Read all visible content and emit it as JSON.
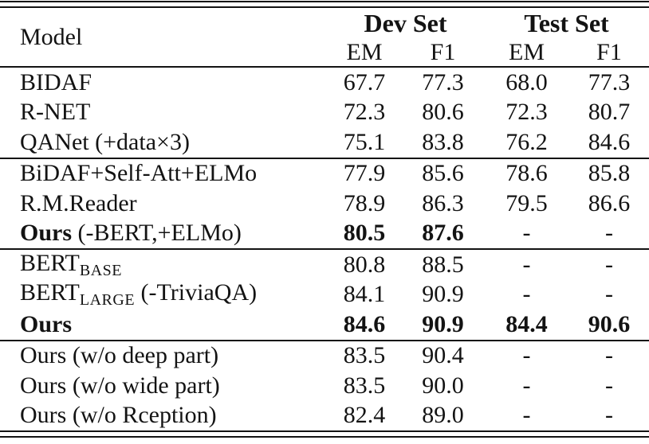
{
  "table": {
    "header": {
      "model": "Model",
      "dev_set": "Dev Set",
      "test_set": "Test Set",
      "em": "EM",
      "f1": "F1"
    },
    "rows": [
      {
        "head": "BIDAF",
        "dev_em": "67.7",
        "dev_f1": "77.3",
        "test_em": "68.0",
        "test_f1": "77.3"
      },
      {
        "head": "R-NET",
        "dev_em": "72.3",
        "dev_f1": "80.6",
        "test_em": "72.3",
        "test_f1": "80.7"
      },
      {
        "head": "QANet (+data×3)",
        "dev_em": "75.1",
        "dev_f1": "83.8",
        "test_em": "76.2",
        "test_f1": "84.6"
      },
      {
        "head": "BiDAF+Self-Att+ELMo",
        "dev_em": "77.9",
        "dev_f1": "85.6",
        "test_em": "78.6",
        "test_f1": "85.8"
      },
      {
        "head": "R.M.Reader",
        "dev_em": "78.9",
        "dev_f1": "86.3",
        "test_em": "79.5",
        "test_f1": "86.6"
      },
      {
        "head": "Ours",
        "rest": " (-BERT,+ELMo)",
        "dev_em": "80.5",
        "dev_f1": "87.6",
        "test_em": "-",
        "test_f1": "-"
      },
      {
        "head": "BERT",
        "sub": "BASE",
        "dev_em": "80.8",
        "dev_f1": "88.5",
        "test_em": "-",
        "test_f1": "-"
      },
      {
        "head": "BERT",
        "sub": "LARGE",
        "rest": " (-TriviaQA)",
        "dev_em": "84.1",
        "dev_f1": "90.9",
        "test_em": "-",
        "test_f1": "-"
      },
      {
        "head": "Ours",
        "dev_em": "84.6",
        "dev_f1": "90.9",
        "test_em": "84.4",
        "test_f1": "90.6"
      },
      {
        "head": "Ours (w/o deep part)",
        "dev_em": "83.5",
        "dev_f1": "90.4",
        "test_em": "-",
        "test_f1": "-"
      },
      {
        "head": "Ours (w/o wide part)",
        "dev_em": "83.5",
        "dev_f1": "90.0",
        "test_em": "-",
        "test_f1": "-"
      },
      {
        "head": "Ours (w/o Rception)",
        "dev_em": "82.4",
        "dev_f1": "89.0",
        "test_em": "-",
        "test_f1": "-"
      }
    ]
  }
}
